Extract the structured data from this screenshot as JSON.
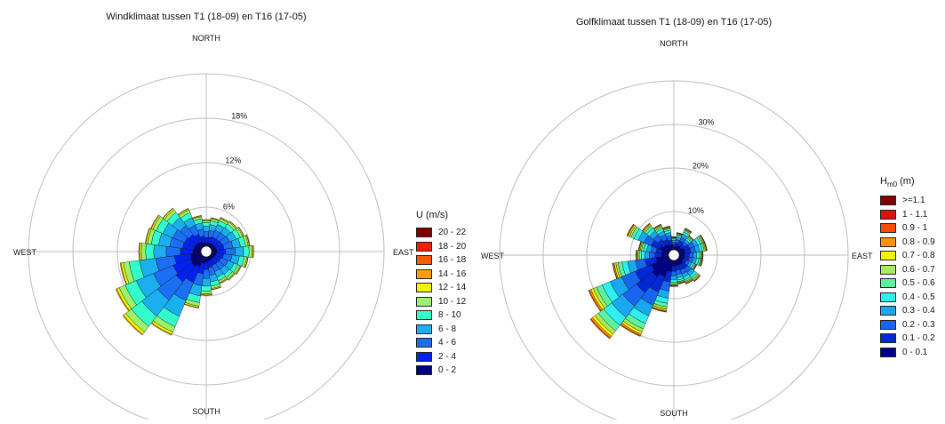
{
  "chart_data": [
    {
      "type": "windrose",
      "title": "Windklimaat tussen T1 (18-09) en T16 (17-05)",
      "directions": {
        "north": "NORTH",
        "east": "EAST",
        "south": "SOUTH",
        "west": "WEST"
      },
      "rings": [
        6,
        12,
        18
      ],
      "ring_labels": [
        "6%",
        "12%",
        "18%"
      ],
      "rmax": 24,
      "legend": {
        "title": "U (m/s)",
        "bins": [
          "20 - 22",
          "18 - 20",
          "16 - 18",
          "14 - 16",
          "12 - 14",
          "10 - 12",
          "8 - 10",
          "6 - 8",
          "4 - 6",
          "2 - 4",
          "0 - 2"
        ],
        "colors": [
          "#7f0000",
          "#ff1a00",
          "#ff5a00",
          "#ff9f00",
          "#f4f400",
          "#9cf26a",
          "#33ffcc",
          "#1ab0f0",
          "#1b6ff5",
          "#0022f0",
          "#00007c"
        ]
      },
      "sector_width_deg": 15,
      "sector_angles_deg": [
        0,
        15,
        30,
        45,
        60,
        75,
        90,
        105,
        120,
        135,
        150,
        165,
        180,
        195,
        210,
        225,
        240,
        255,
        270,
        285,
        300,
        315,
        330,
        345
      ],
      "sector_totals_pct": [
        3.6,
        3.9,
        4.3,
        4.5,
        4.8,
        5.2,
        5.7,
        5.0,
        4.4,
        4.2,
        4.0,
        4.5,
        5.2,
        7.0,
        11.5,
        13.5,
        12.5,
        11.0,
        8.4,
        7.6,
        7.4,
        6.7,
        5.6,
        4.2
      ],
      "speed_fractions_low_to_high": [
        0.13,
        0.2,
        0.23,
        0.2,
        0.13,
        0.07,
        0.03,
        0.01,
        0,
        0,
        0
      ]
    },
    {
      "type": "windrose",
      "title": "Golfklimaat tussen T1 (18-09) en T16 (17-05)",
      "directions": {
        "north": "NORTH",
        "east": "EAST",
        "south": "SOUTH",
        "west": "WEST"
      },
      "rings": [
        10,
        20,
        30
      ],
      "ring_labels": [
        "10%",
        "20%",
        "30%"
      ],
      "rmax": 40,
      "legend": {
        "title": "H",
        "title_sub": "m0",
        "title_unit": "(m)",
        "bins": [
          ">=1.1",
          "1 - 1.1",
          "0.9 - 1",
          "0.8 - 0.9",
          "0.7 - 0.8",
          "0.6 - 0.7",
          "0.5 - 0.6",
          "0.4 - 0.5",
          "0.3 - 0.4",
          "0.2 - 0.3",
          "0.1 - 0.2",
          "0 - 0.1"
        ],
        "colors": [
          "#7f0000",
          "#e01010",
          "#ff4a00",
          "#ff9400",
          "#f4f400",
          "#a8ee58",
          "#5cf2a0",
          "#2ef0f0",
          "#18a8f0",
          "#1865f0",
          "#0028d6",
          "#00008a"
        ]
      },
      "sector_width_deg": 15,
      "sector_angles_deg": [
        0,
        15,
        30,
        45,
        60,
        75,
        90,
        105,
        120,
        135,
        150,
        165,
        180,
        195,
        210,
        225,
        240,
        255,
        270,
        285,
        300,
        315,
        330,
        345
      ],
      "sector_totals_pct": [
        3.0,
        4.0,
        5.5,
        4.5,
        6.5,
        6.5,
        5.5,
        5.5,
        4.5,
        6.5,
        6.0,
        5.5,
        6.0,
        12.0,
        19.0,
        23.0,
        20.0,
        13.0,
        7.5,
        7.0,
        10.5,
        8.0,
        6.5,
        5.5
      ],
      "height_fractions_low_to_high": [
        0.22,
        0.2,
        0.17,
        0.14,
        0.1,
        0.07,
        0.04,
        0.03,
        0.02,
        0.01,
        0,
        0
      ]
    }
  ]
}
